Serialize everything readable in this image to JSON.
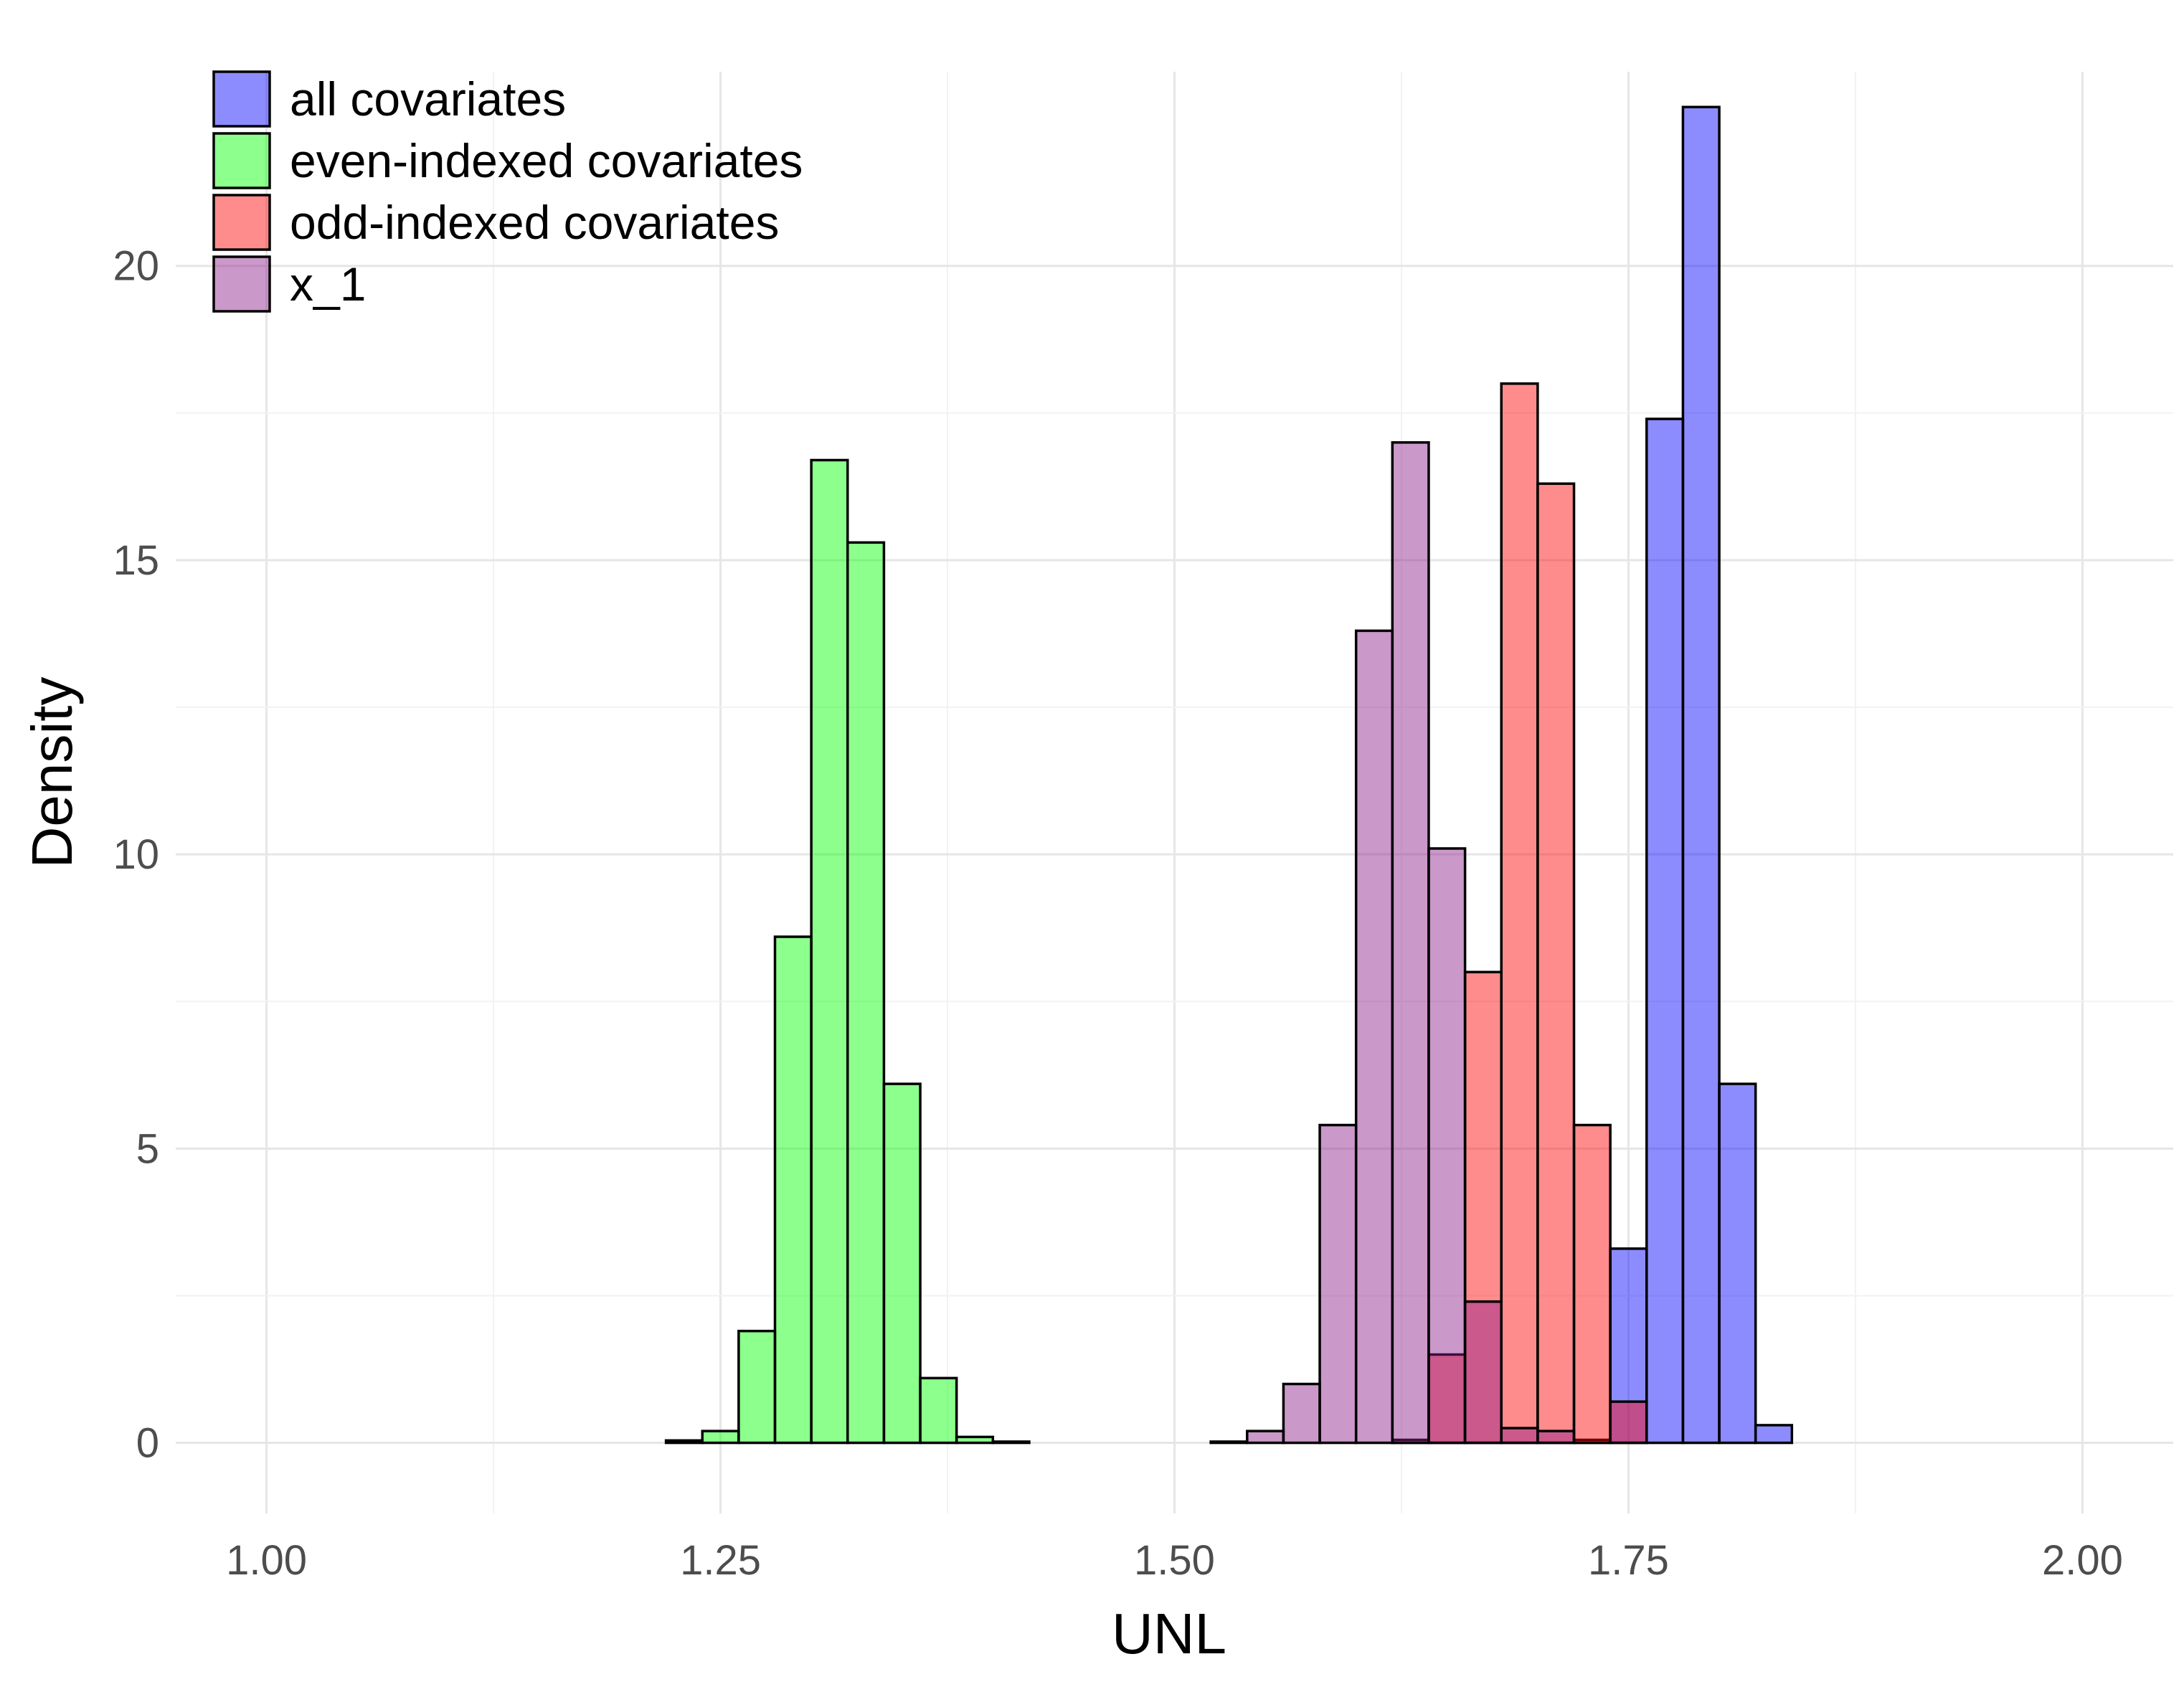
{
  "chart_data": {
    "type": "bar",
    "subtype": "overlaid histogram",
    "xlabel": "UNL",
    "ylabel": "Density",
    "xlim": [
      0.95,
      2.05
    ],
    "ylim": [
      -1.2,
      23.3
    ],
    "x_ticks": [
      1.0,
      1.25,
      1.5,
      1.75,
      2.0
    ],
    "x_tick_labels": [
      "1.00",
      "1.25",
      "1.50",
      "1.75",
      "2.00"
    ],
    "y_ticks": [
      0,
      5,
      10,
      15,
      20
    ],
    "y_tick_labels": [
      "0",
      "5",
      "10",
      "15",
      "20"
    ],
    "grid": true,
    "legend_position": "top-left",
    "bin_width": 0.02,
    "series": [
      {
        "name": "all covariates",
        "color": "#0000ff",
        "opacity": 0.45,
        "bins": [
          {
            "x": 1.73,
            "y": 0.05
          },
          {
            "x": 1.75,
            "y": 3.3
          },
          {
            "x": 1.77,
            "y": 17.4
          },
          {
            "x": 1.79,
            "y": 22.7
          },
          {
            "x": 1.81,
            "y": 6.1
          },
          {
            "x": 1.83,
            "y": 0.3
          }
        ]
      },
      {
        "name": "even-indexed covariates",
        "color": "#00ff00",
        "opacity": 0.45,
        "bins": [
          {
            "x": 1.23,
            "y": 0.04
          },
          {
            "x": 1.25,
            "y": 0.2
          },
          {
            "x": 1.27,
            "y": 1.9
          },
          {
            "x": 1.29,
            "y": 8.6
          },
          {
            "x": 1.31,
            "y": 16.7
          },
          {
            "x": 1.33,
            "y": 15.3
          },
          {
            "x": 1.35,
            "y": 6.1
          },
          {
            "x": 1.37,
            "y": 1.1
          },
          {
            "x": 1.39,
            "y": 0.1
          },
          {
            "x": 1.41,
            "y": 0.02
          }
        ]
      },
      {
        "name": "odd-indexed covariates",
        "color": "#ff0000",
        "opacity": 0.45,
        "bins": [
          {
            "x": 1.63,
            "y": 0.05
          },
          {
            "x": 1.65,
            "y": 1.5
          },
          {
            "x": 1.67,
            "y": 8.0
          },
          {
            "x": 1.69,
            "y": 18.0
          },
          {
            "x": 1.71,
            "y": 16.3
          },
          {
            "x": 1.73,
            "y": 5.4
          },
          {
            "x": 1.75,
            "y": 0.7
          }
        ]
      },
      {
        "name": "x_1",
        "color": "#8b1a89",
        "opacity": 0.45,
        "bins": [
          {
            "x": 1.53,
            "y": 0.02
          },
          {
            "x": 1.55,
            "y": 0.2
          },
          {
            "x": 1.57,
            "y": 1.0
          },
          {
            "x": 1.59,
            "y": 5.4
          },
          {
            "x": 1.61,
            "y": 13.8
          },
          {
            "x": 1.63,
            "y": 17.0
          },
          {
            "x": 1.65,
            "y": 10.1
          },
          {
            "x": 1.67,
            "y": 2.4
          },
          {
            "x": 1.69,
            "y": 0.25
          },
          {
            "x": 1.71,
            "y": 0.2
          }
        ]
      }
    ]
  }
}
